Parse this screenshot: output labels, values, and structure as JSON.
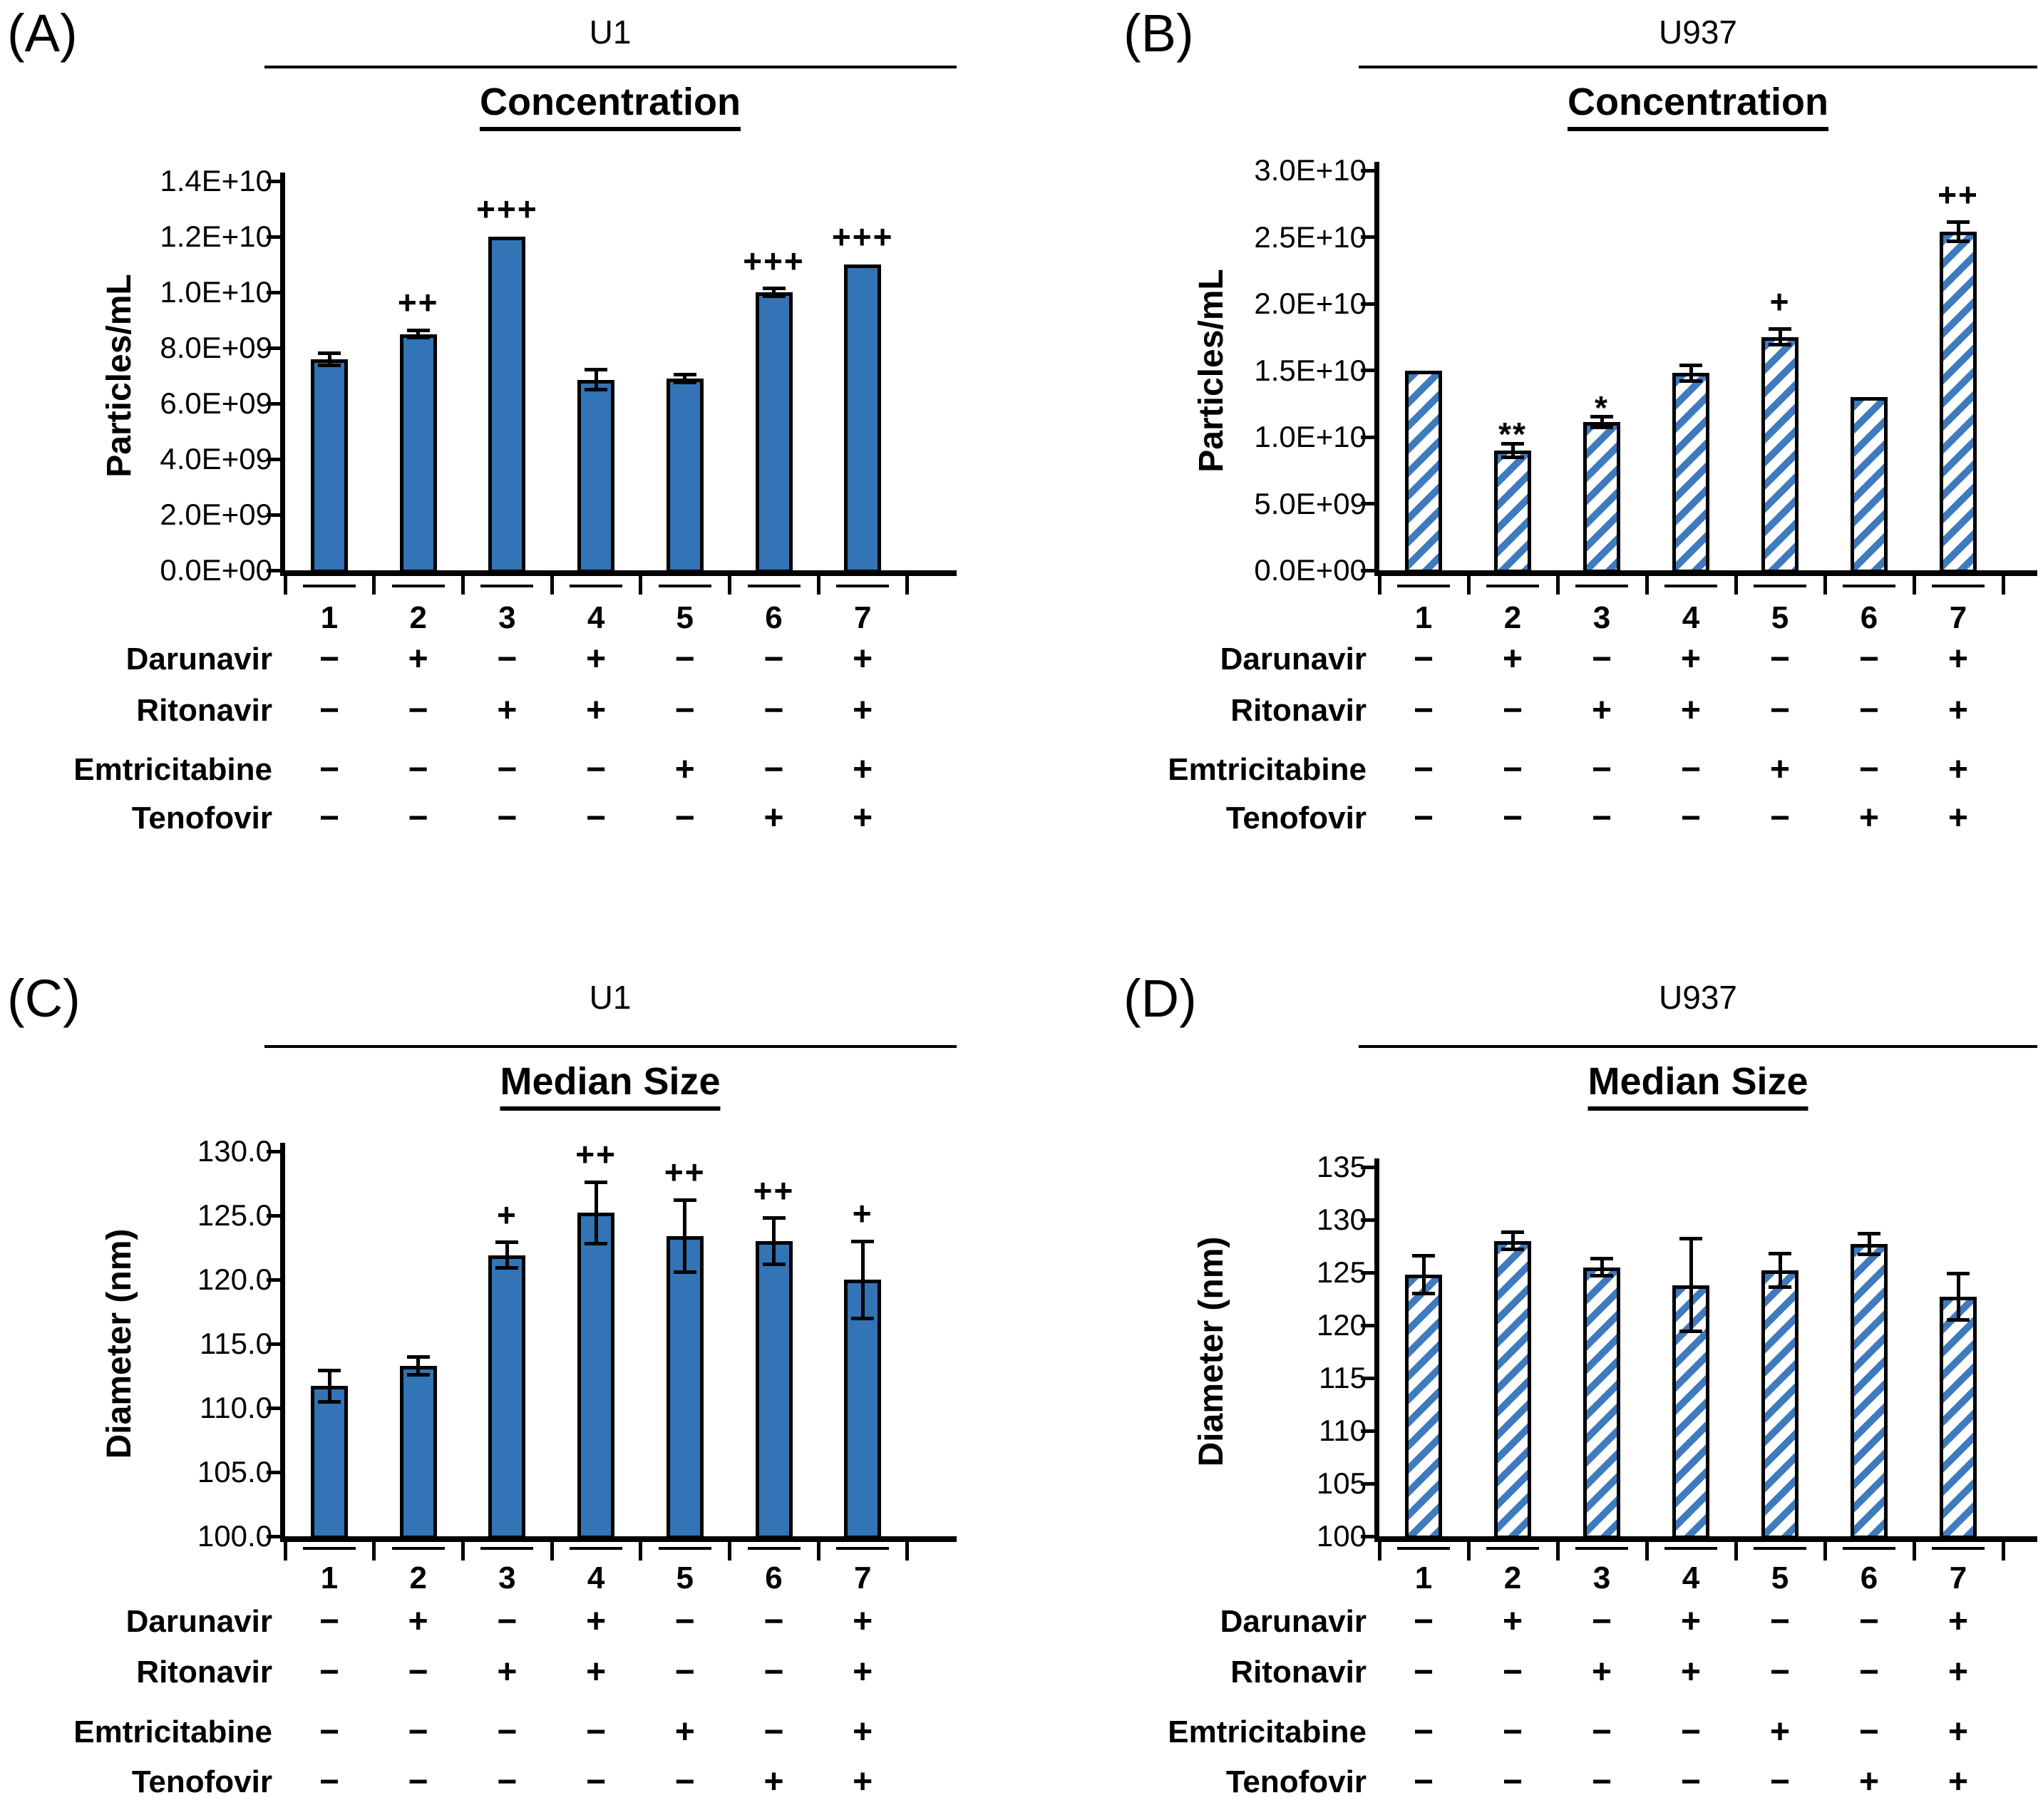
{
  "figure": {
    "background": "#FFFFFF",
    "axis_color": "#000000",
    "bar_fill_color": "#3274B5",
    "hatch_stripe_color": "#3E7BBE",
    "bar_border_color": "#000000"
  },
  "treatment_matrix": [
    {
      "treatment": "Darunavir",
      "signs": [
        "−",
        "+",
        "−",
        "+",
        "−",
        "−",
        "+"
      ]
    },
    {
      "treatment": "Ritonavir",
      "signs": [
        "−",
        "−",
        "+",
        "+",
        "−",
        "−",
        "+"
      ]
    },
    {
      "treatment": "Emtricitabine",
      "signs": [
        "−",
        "−",
        "−",
        "−",
        "+",
        "−",
        "+"
      ]
    },
    {
      "treatment": "Tenofovir",
      "signs": [
        "−",
        "−",
        "−",
        "−",
        "−",
        "+",
        "+"
      ]
    }
  ],
  "chart_data": [
    {
      "panel": "A",
      "tag": "(A)",
      "cell_line": "U1",
      "title": "Concentration",
      "type": "bar",
      "bar_style": "solid-fill",
      "xlabel": "",
      "ylabel": "Particles/mL",
      "categories": [
        "1",
        "2",
        "3",
        "4",
        "5",
        "6",
        "7"
      ],
      "values": [
        7600000000.0,
        8500000000.0,
        12000000000.0,
        6850000000.0,
        6900000000.0,
        10000000000.0,
        11000000000.0
      ],
      "errors": [
        220000000.0,
        130000000.0,
        0,
        360000000.0,
        140000000.0,
        130000000.0,
        0
      ],
      "sig_markers": [
        "",
        "++",
        "+++",
        "",
        "",
        "+++",
        "+++"
      ],
      "ylim": [
        0,
        14000000000.0
      ],
      "ytick_labels": [
        "0.0E+00",
        "2.0E+09",
        "4.0E+09",
        "6.0E+09",
        "8.0E+09",
        "1.0E+10",
        "1.2E+10",
        "1.4E+10"
      ],
      "grid": false
    },
    {
      "panel": "B",
      "tag": "(B)",
      "cell_line": "U937",
      "title": "Concentration",
      "type": "bar",
      "bar_style": "diagonal-hatch",
      "xlabel": "",
      "ylabel": "Particles/mL",
      "categories": [
        "1",
        "2",
        "3",
        "4",
        "5",
        "6",
        "7"
      ],
      "values": [
        15000000000.0,
        9000000000.0,
        11100000000.0,
        14800000000.0,
        17500000000.0,
        13000000000.0,
        25400000000.0
      ],
      "errors": [
        0,
        500000000.0,
        400000000.0,
        600000000.0,
        600000000.0,
        0,
        700000000.0
      ],
      "sig_markers": [
        "",
        "**",
        "*",
        "",
        "+",
        "",
        "++"
      ],
      "ylim": [
        0,
        30000000000.0
      ],
      "ytick_labels": [
        "0.0E+00",
        "5.0E+09",
        "1.0E+10",
        "1.5E+10",
        "2.0E+10",
        "2.5E+10",
        "3.0E+10"
      ],
      "grid": false
    },
    {
      "panel": "C",
      "tag": "(C)",
      "cell_line": "U1",
      "title": "Median Size",
      "type": "bar",
      "bar_style": "solid-fill",
      "xlabel": "",
      "ylabel": "Diameter (nm)",
      "categories": [
        "1",
        "2",
        "3",
        "4",
        "5",
        "6",
        "7"
      ],
      "values": [
        111.7,
        113.3,
        121.9,
        125.2,
        123.4,
        123.0,
        120.0
      ],
      "errors": [
        1.2,
        0.7,
        1.0,
        2.4,
        2.8,
        1.8,
        3.0
      ],
      "sig_markers": [
        "",
        "",
        "+",
        "++",
        "++",
        "++",
        "+"
      ],
      "ylim": [
        100,
        130
      ],
      "ytick_labels": [
        "100.0",
        "105.0",
        "110.0",
        "115.0",
        "120.0",
        "125.0",
        "130.0"
      ],
      "grid": false
    },
    {
      "panel": "D",
      "tag": "(D)",
      "cell_line": "U937",
      "title": "Median Size",
      "type": "bar",
      "bar_style": "diagonal-hatch",
      "xlabel": "",
      "ylabel": "Diameter (nm)",
      "categories": [
        "1",
        "2",
        "3",
        "4",
        "5",
        "6",
        "7"
      ],
      "values": [
        124.8,
        128.0,
        125.5,
        123.8,
        125.2,
        127.7,
        122.7
      ],
      "errors": [
        1.8,
        0.8,
        0.8,
        4.4,
        1.6,
        1.0,
        2.2
      ],
      "sig_markers": [
        "",
        "",
        "",
        "",
        "",
        "",
        ""
      ],
      "ylim": [
        100,
        135
      ],
      "ytick_labels": [
        "100",
        "105",
        "110",
        "115",
        "120",
        "125",
        "130",
        "135"
      ],
      "grid": false
    }
  ]
}
